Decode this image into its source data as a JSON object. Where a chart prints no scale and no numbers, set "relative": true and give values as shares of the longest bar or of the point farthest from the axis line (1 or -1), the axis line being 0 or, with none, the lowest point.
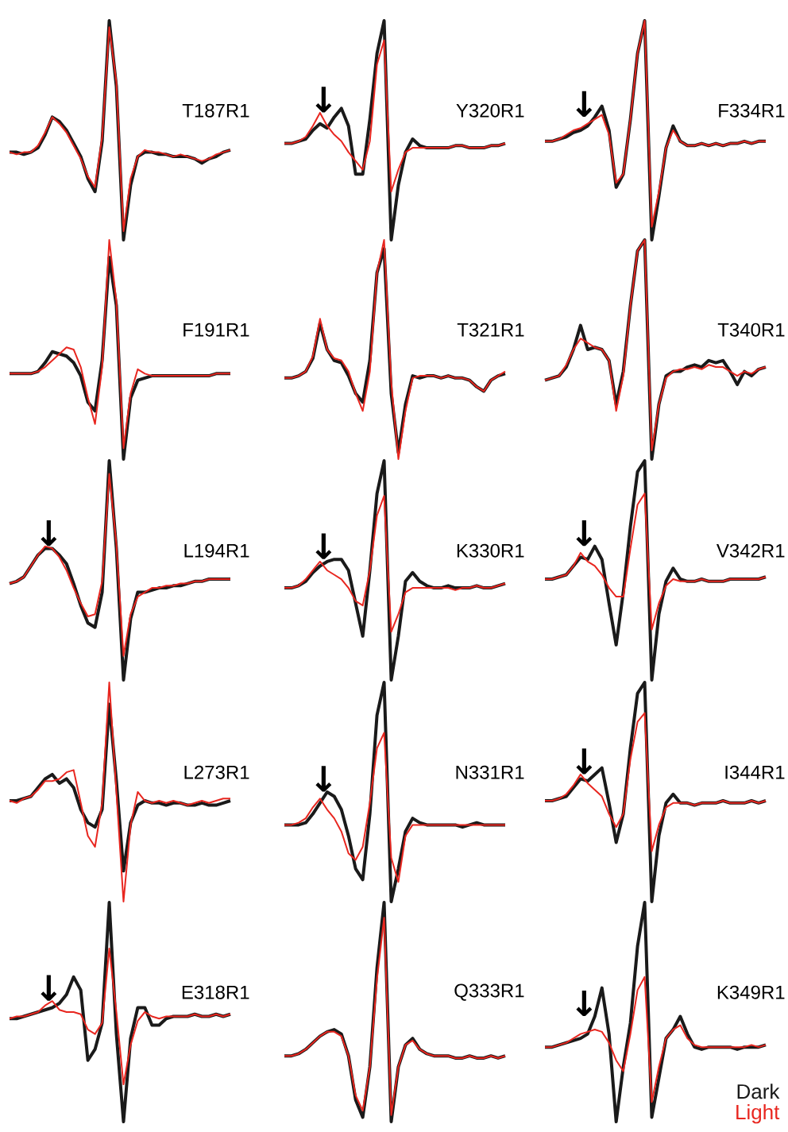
{
  "chart_data": [
    {
      "type": "line",
      "title": "T187R1",
      "relative": true,
      "line_style": "solid",
      "marker": "none",
      "categories": [
        null,
        null,
        null,
        null,
        null,
        null,
        null,
        null,
        null,
        null,
        null,
        null,
        null,
        null,
        null,
        null,
        null,
        null,
        null,
        null,
        null,
        null,
        null,
        null,
        null,
        null,
        null,
        null,
        null,
        null,
        null,
        null
      ],
      "series": [
        {
          "color": "#1a1a1a",
          "values": [
            0.4,
            0.4,
            0.39,
            0.4,
            0.42,
            0.48,
            0.56,
            0.54,
            0.5,
            0.44,
            0.38,
            0.28,
            0.22,
            0.45,
            1.0,
            0.7,
            0.0,
            0.25,
            0.38,
            0.4,
            0.4,
            0.39,
            0.39,
            0.38,
            0.38,
            0.38,
            0.37,
            0.35,
            0.37,
            0.38,
            0.4,
            0.41
          ]
        },
        {
          "color": "#e8261f",
          "values": [
            0.4,
            0.39,
            0.4,
            0.4,
            0.43,
            0.49,
            0.56,
            0.53,
            0.49,
            0.43,
            0.37,
            0.29,
            0.24,
            0.47,
            0.97,
            0.72,
            0.04,
            0.28,
            0.38,
            0.41,
            0.4,
            0.4,
            0.39,
            0.38,
            0.39,
            0.38,
            0.37,
            0.36,
            0.37,
            0.39,
            0.4,
            0.41
          ]
        }
      ]
    },
    {
      "type": "line",
      "title": "F191R1",
      "relative": true,
      "line_style": "solid",
      "marker": "none",
      "categories": [
        null,
        null,
        null,
        null,
        null,
        null,
        null,
        null,
        null,
        null,
        null,
        null,
        null,
        null,
        null,
        null,
        null,
        null,
        null,
        null,
        null,
        null,
        null,
        null,
        null,
        null,
        null,
        null,
        null,
        null,
        null,
        null
      ],
      "series": [
        {
          "color": "#1a1a1a",
          "values": [
            0.39,
            0.39,
            0.39,
            0.39,
            0.4,
            0.44,
            0.49,
            0.48,
            0.47,
            0.44,
            0.38,
            0.26,
            0.22,
            0.45,
            0.92,
            0.7,
            0.0,
            0.28,
            0.36,
            0.37,
            0.38,
            0.38,
            0.38,
            0.38,
            0.38,
            0.38,
            0.38,
            0.38,
            0.38,
            0.39,
            0.39,
            0.39
          ]
        },
        {
          "color": "#e8261f",
          "values": [
            0.39,
            0.39,
            0.39,
            0.39,
            0.4,
            0.42,
            0.45,
            0.48,
            0.51,
            0.5,
            0.42,
            0.28,
            0.16,
            0.42,
            1.0,
            0.72,
            0.05,
            0.3,
            0.41,
            0.39,
            0.38,
            0.38,
            0.38,
            0.38,
            0.38,
            0.38,
            0.38,
            0.38,
            0.38,
            0.39,
            0.39,
            0.39
          ]
        }
      ]
    },
    {
      "type": "line",
      "title": "L194R1",
      "relative": true,
      "line_style": "solid",
      "marker": "none",
      "annotations": [
        "↓"
      ],
      "categories": [
        null,
        null,
        null,
        null,
        null,
        null,
        null,
        null,
        null,
        null,
        null,
        null,
        null,
        null,
        null,
        null,
        null,
        null,
        null,
        null,
        null,
        null,
        null,
        null,
        null,
        null,
        null,
        null,
        null,
        null,
        null,
        null
      ],
      "series": [
        {
          "color": "#1a1a1a",
          "values": [
            0.44,
            0.45,
            0.47,
            0.52,
            0.57,
            0.6,
            0.6,
            0.57,
            0.53,
            0.44,
            0.34,
            0.26,
            0.24,
            0.4,
            1.0,
            0.6,
            0.0,
            0.28,
            0.4,
            0.4,
            0.41,
            0.42,
            0.42,
            0.43,
            0.43,
            0.44,
            0.45,
            0.45,
            0.46,
            0.46,
            0.46,
            0.46
          ]
        },
        {
          "color": "#e8261f",
          "values": [
            0.44,
            0.45,
            0.47,
            0.52,
            0.57,
            0.61,
            0.6,
            0.56,
            0.5,
            0.42,
            0.35,
            0.29,
            0.3,
            0.45,
            0.94,
            0.62,
            0.11,
            0.3,
            0.38,
            0.4,
            0.42,
            0.42,
            0.43,
            0.43,
            0.44,
            0.44,
            0.45,
            0.45,
            0.46,
            0.46,
            0.46,
            0.46
          ]
        }
      ]
    },
    {
      "type": "line",
      "title": "L273R1",
      "relative": true,
      "line_style": "solid",
      "marker": "none",
      "categories": [
        null,
        null,
        null,
        null,
        null,
        null,
        null,
        null,
        null,
        null,
        null,
        null,
        null,
        null,
        null,
        null,
        null,
        null,
        null,
        null,
        null,
        null,
        null,
        null,
        null,
        null,
        null,
        null,
        null,
        null,
        null,
        null
      ],
      "series": [
        {
          "color": "#1a1a1a",
          "values": [
            0.46,
            0.46,
            0.47,
            0.48,
            0.52,
            0.56,
            0.58,
            0.54,
            0.56,
            0.52,
            0.42,
            0.36,
            0.34,
            0.42,
            0.9,
            0.55,
            0.14,
            0.36,
            0.44,
            0.46,
            0.45,
            0.45,
            0.44,
            0.45,
            0.45,
            0.44,
            0.44,
            0.45,
            0.44,
            0.44,
            0.45,
            0.46
          ]
        },
        {
          "color": "#e8261f",
          "values": [
            0.46,
            0.45,
            0.47,
            0.48,
            0.51,
            0.55,
            0.55,
            0.56,
            0.59,
            0.6,
            0.45,
            0.3,
            0.25,
            0.45,
            1.0,
            0.5,
            0.0,
            0.35,
            0.5,
            0.46,
            0.45,
            0.46,
            0.45,
            0.46,
            0.45,
            0.44,
            0.45,
            0.46,
            0.45,
            0.46,
            0.47,
            0.47
          ]
        }
      ]
    },
    {
      "type": "line",
      "title": "E318R1",
      "relative": true,
      "line_style": "solid",
      "marker": "none",
      "annotations": [
        "↓"
      ],
      "categories": [
        null,
        null,
        null,
        null,
        null,
        null,
        null,
        null,
        null,
        null,
        null,
        null,
        null,
        null,
        null,
        null,
        null,
        null,
        null,
        null,
        null,
        null,
        null,
        null,
        null,
        null,
        null,
        null,
        null,
        null,
        null,
        null
      ],
      "series": [
        {
          "color": "#1a1a1a",
          "values": [
            0.47,
            0.47,
            0.48,
            0.49,
            0.5,
            0.51,
            0.52,
            0.54,
            0.58,
            0.66,
            0.6,
            0.28,
            0.33,
            0.45,
            1.0,
            0.4,
            0.0,
            0.38,
            0.52,
            0.52,
            0.44,
            0.44,
            0.47,
            0.48,
            0.48,
            0.48,
            0.49,
            0.48,
            0.48,
            0.49,
            0.48,
            0.49
          ]
        },
        {
          "color": "#e8261f",
          "values": [
            0.47,
            0.48,
            0.48,
            0.49,
            0.5,
            0.53,
            0.55,
            0.51,
            0.5,
            0.5,
            0.49,
            0.42,
            0.4,
            0.45,
            0.79,
            0.5,
            0.17,
            0.35,
            0.46,
            0.5,
            0.48,
            0.47,
            0.48,
            0.48,
            0.48,
            0.48,
            0.49,
            0.48,
            0.48,
            0.49,
            0.48,
            0.49
          ]
        }
      ]
    },
    {
      "type": "line",
      "title": "Y320R1",
      "relative": true,
      "line_style": "solid",
      "marker": "none",
      "annotations": [
        "↓"
      ],
      "categories": [
        null,
        null,
        null,
        null,
        null,
        null,
        null,
        null,
        null,
        null,
        null,
        null,
        null,
        null,
        null,
        null,
        null,
        null,
        null,
        null,
        null,
        null,
        null,
        null,
        null,
        null,
        null,
        null,
        null,
        null,
        null,
        null
      ],
      "series": [
        {
          "color": "#1a1a1a",
          "values": [
            0.44,
            0.44,
            0.45,
            0.46,
            0.5,
            0.53,
            0.51,
            0.56,
            0.6,
            0.52,
            0.3,
            0.3,
            0.55,
            0.85,
            1.0,
            0.0,
            0.25,
            0.4,
            0.46,
            0.43,
            0.42,
            0.42,
            0.42,
            0.42,
            0.43,
            0.43,
            0.42,
            0.42,
            0.42,
            0.43,
            0.43,
            0.44
          ]
        },
        {
          "color": "#e8261f",
          "values": [
            0.44,
            0.44,
            0.45,
            0.47,
            0.52,
            0.58,
            0.52,
            0.48,
            0.45,
            0.4,
            0.36,
            0.32,
            0.45,
            0.8,
            0.91,
            0.22,
            0.32,
            0.4,
            0.42,
            0.42,
            0.42,
            0.42,
            0.42,
            0.42,
            0.43,
            0.43,
            0.42,
            0.42,
            0.42,
            0.43,
            0.43,
            0.44
          ]
        }
      ]
    },
    {
      "type": "line",
      "title": "T321R1",
      "relative": true,
      "line_style": "solid",
      "marker": "none",
      "categories": [
        null,
        null,
        null,
        null,
        null,
        null,
        null,
        null,
        null,
        null,
        null,
        null,
        null,
        null,
        null,
        null,
        null,
        null,
        null,
        null,
        null,
        null,
        null,
        null,
        null,
        null,
        null,
        null,
        null,
        null,
        null,
        null
      ],
      "series": [
        {
          "color": "#1a1a1a",
          "values": [
            0.37,
            0.37,
            0.38,
            0.4,
            0.46,
            0.62,
            0.5,
            0.45,
            0.44,
            0.38,
            0.3,
            0.26,
            0.45,
            0.85,
            0.96,
            0.3,
            0.03,
            0.25,
            0.38,
            0.37,
            0.38,
            0.38,
            0.37,
            0.38,
            0.37,
            0.37,
            0.36,
            0.33,
            0.31,
            0.36,
            0.38,
            0.39
          ]
        },
        {
          "color": "#e8261f",
          "values": [
            0.37,
            0.37,
            0.38,
            0.4,
            0.47,
            0.64,
            0.5,
            0.46,
            0.45,
            0.4,
            0.3,
            0.22,
            0.4,
            0.85,
            1.0,
            0.35,
            0.0,
            0.22,
            0.37,
            0.38,
            0.38,
            0.38,
            0.37,
            0.38,
            0.37,
            0.37,
            0.36,
            0.33,
            0.31,
            0.36,
            0.38,
            0.4
          ]
        }
      ]
    },
    {
      "type": "line",
      "title": "K330R1",
      "relative": true,
      "line_style": "solid",
      "marker": "none",
      "annotations": [
        "↓"
      ],
      "categories": [
        null,
        null,
        null,
        null,
        null,
        null,
        null,
        null,
        null,
        null,
        null,
        null,
        null,
        null,
        null,
        null,
        null,
        null,
        null,
        null,
        null,
        null,
        null,
        null,
        null,
        null,
        null,
        null,
        null,
        null,
        null,
        null
      ],
      "series": [
        {
          "color": "#1a1a1a",
          "values": [
            0.42,
            0.42,
            0.43,
            0.45,
            0.49,
            0.52,
            0.54,
            0.55,
            0.55,
            0.5,
            0.35,
            0.2,
            0.5,
            0.85,
            1.0,
            0.0,
            0.2,
            0.45,
            0.49,
            0.45,
            0.43,
            0.42,
            0.42,
            0.43,
            0.42,
            0.42,
            0.42,
            0.43,
            0.42,
            0.42,
            0.43,
            0.44
          ]
        },
        {
          "color": "#e8261f",
          "values": [
            0.42,
            0.42,
            0.43,
            0.46,
            0.5,
            0.54,
            0.5,
            0.48,
            0.46,
            0.42,
            0.36,
            0.34,
            0.5,
            0.75,
            0.84,
            0.22,
            0.3,
            0.4,
            0.42,
            0.42,
            0.42,
            0.42,
            0.42,
            0.42,
            0.41,
            0.42,
            0.42,
            0.43,
            0.42,
            0.42,
            0.43,
            0.44
          ]
        }
      ]
    },
    {
      "type": "line",
      "title": "N331R1",
      "relative": true,
      "line_style": "solid",
      "marker": "none",
      "annotations": [
        "↓"
      ],
      "categories": [
        null,
        null,
        null,
        null,
        null,
        null,
        null,
        null,
        null,
        null,
        null,
        null,
        null,
        null,
        null,
        null,
        null,
        null,
        null,
        null,
        null,
        null,
        null,
        null,
        null,
        null,
        null,
        null,
        null,
        null,
        null,
        null
      ],
      "series": [
        {
          "color": "#1a1a1a",
          "values": [
            0.35,
            0.35,
            0.35,
            0.36,
            0.4,
            0.45,
            0.5,
            0.48,
            0.42,
            0.3,
            0.15,
            0.1,
            0.4,
            0.85,
            1.0,
            0.0,
            0.15,
            0.32,
            0.38,
            0.36,
            0.35,
            0.35,
            0.35,
            0.35,
            0.35,
            0.34,
            0.35,
            0.36,
            0.35,
            0.35,
            0.35,
            0.35
          ]
        },
        {
          "color": "#e8261f",
          "values": [
            0.35,
            0.35,
            0.36,
            0.38,
            0.43,
            0.47,
            0.42,
            0.38,
            0.32,
            0.22,
            0.19,
            0.25,
            0.45,
            0.7,
            0.77,
            0.2,
            0.09,
            0.3,
            0.35,
            0.35,
            0.35,
            0.35,
            0.35,
            0.35,
            0.35,
            0.35,
            0.35,
            0.35,
            0.35,
            0.35,
            0.35,
            0.35
          ]
        }
      ]
    },
    {
      "type": "line",
      "title": "Q333R1",
      "relative": true,
      "line_style": "solid",
      "marker": "none",
      "categories": [
        null,
        null,
        null,
        null,
        null,
        null,
        null,
        null,
        null,
        null,
        null,
        null,
        null,
        null,
        null,
        null,
        null,
        null,
        null,
        null,
        null,
        null,
        null,
        null,
        null,
        null,
        null,
        null,
        null,
        null,
        null,
        null
      ],
      "series": [
        {
          "color": "#1a1a1a",
          "values": [
            0.3,
            0.3,
            0.31,
            0.33,
            0.36,
            0.39,
            0.41,
            0.42,
            0.4,
            0.3,
            0.1,
            0.02,
            0.25,
            0.7,
            1.0,
            0.0,
            0.25,
            0.35,
            0.38,
            0.33,
            0.31,
            0.3,
            0.3,
            0.3,
            0.29,
            0.29,
            0.3,
            0.29,
            0.29,
            0.3,
            0.29,
            0.3
          ]
        },
        {
          "color": "#e8261f",
          "values": [
            0.3,
            0.3,
            0.31,
            0.33,
            0.36,
            0.39,
            0.41,
            0.41,
            0.39,
            0.3,
            0.12,
            0.05,
            0.25,
            0.65,
            0.93,
            0.03,
            0.25,
            0.35,
            0.37,
            0.33,
            0.31,
            0.3,
            0.3,
            0.3,
            0.29,
            0.29,
            0.3,
            0.29,
            0.29,
            0.3,
            0.29,
            0.3
          ]
        }
      ]
    },
    {
      "type": "line",
      "title": "F334R1",
      "relative": true,
      "line_style": "solid",
      "marker": "none",
      "annotations": [
        "↓"
      ],
      "categories": [
        null,
        null,
        null,
        null,
        null,
        null,
        null,
        null,
        null,
        null,
        null,
        null,
        null,
        null,
        null,
        null,
        null,
        null,
        null,
        null,
        null,
        null,
        null,
        null,
        null,
        null,
        null,
        null,
        null,
        null,
        null,
        null
      ],
      "series": [
        {
          "color": "#1a1a1a",
          "values": [
            0.45,
            0.45,
            0.46,
            0.47,
            0.49,
            0.5,
            0.52,
            0.56,
            0.61,
            0.5,
            0.24,
            0.3,
            0.55,
            0.85,
            1.0,
            0.0,
            0.2,
            0.42,
            0.52,
            0.45,
            0.43,
            0.43,
            0.44,
            0.43,
            0.44,
            0.43,
            0.44,
            0.44,
            0.45,
            0.44,
            0.45,
            0.45
          ]
        },
        {
          "color": "#e8261f",
          "values": [
            0.45,
            0.45,
            0.46,
            0.48,
            0.5,
            0.51,
            0.53,
            0.55,
            0.57,
            0.48,
            0.26,
            0.3,
            0.55,
            0.85,
            1.0,
            0.06,
            0.22,
            0.42,
            0.5,
            0.45,
            0.43,
            0.43,
            0.44,
            0.43,
            0.44,
            0.43,
            0.44,
            0.44,
            0.45,
            0.44,
            0.45,
            0.45
          ]
        }
      ]
    },
    {
      "type": "line",
      "title": "T340R1",
      "relative": true,
      "line_style": "solid",
      "marker": "none",
      "categories": [
        null,
        null,
        null,
        null,
        null,
        null,
        null,
        null,
        null,
        null,
        null,
        null,
        null,
        null,
        null,
        null,
        null,
        null,
        null,
        null,
        null,
        null,
        null,
        null,
        null,
        null,
        null,
        null,
        null,
        null,
        null,
        null
      ],
      "series": [
        {
          "color": "#1a1a1a",
          "values": [
            0.36,
            0.37,
            0.38,
            0.42,
            0.5,
            0.61,
            0.5,
            0.51,
            0.5,
            0.45,
            0.25,
            0.4,
            0.7,
            0.95,
            1.0,
            0.0,
            0.25,
            0.38,
            0.4,
            0.4,
            0.42,
            0.43,
            0.42,
            0.45,
            0.44,
            0.45,
            0.4,
            0.34,
            0.4,
            0.38,
            0.41,
            0.42
          ]
        },
        {
          "color": "#e8261f",
          "values": [
            0.36,
            0.37,
            0.38,
            0.43,
            0.5,
            0.55,
            0.53,
            0.51,
            0.5,
            0.45,
            0.22,
            0.38,
            0.7,
            0.95,
            1.0,
            0.04,
            0.25,
            0.37,
            0.4,
            0.41,
            0.41,
            0.42,
            0.41,
            0.43,
            0.42,
            0.42,
            0.4,
            0.38,
            0.4,
            0.39,
            0.41,
            0.42
          ]
        }
      ]
    },
    {
      "type": "line",
      "title": "V342R1",
      "relative": true,
      "line_style": "solid",
      "marker": "none",
      "annotations": [
        "↓"
      ],
      "categories": [
        null,
        null,
        null,
        null,
        null,
        null,
        null,
        null,
        null,
        null,
        null,
        null,
        null,
        null,
        null,
        null,
        null,
        null,
        null,
        null,
        null,
        null,
        null,
        null,
        null,
        null,
        null,
        null,
        null,
        null,
        null,
        null
      ],
      "series": [
        {
          "color": "#1a1a1a",
          "values": [
            0.46,
            0.46,
            0.47,
            0.48,
            0.52,
            0.56,
            0.55,
            0.61,
            0.55,
            0.35,
            0.16,
            0.4,
            0.7,
            0.95,
            1.0,
            0.0,
            0.3,
            0.45,
            0.51,
            0.46,
            0.45,
            0.45,
            0.46,
            0.45,
            0.45,
            0.45,
            0.46,
            0.46,
            0.46,
            0.46,
            0.46,
            0.47
          ]
        },
        {
          "color": "#e8261f",
          "values": [
            0.46,
            0.46,
            0.47,
            0.48,
            0.52,
            0.58,
            0.54,
            0.52,
            0.48,
            0.42,
            0.38,
            0.38,
            0.6,
            0.8,
            0.85,
            0.23,
            0.35,
            0.43,
            0.46,
            0.45,
            0.45,
            0.45,
            0.46,
            0.45,
            0.45,
            0.45,
            0.46,
            0.46,
            0.46,
            0.46,
            0.46,
            0.47
          ]
        }
      ]
    },
    {
      "type": "line",
      "title": "I344R1",
      "relative": true,
      "line_style": "solid",
      "marker": "none",
      "annotations": [
        "↓"
      ],
      "categories": [
        null,
        null,
        null,
        null,
        null,
        null,
        null,
        null,
        null,
        null,
        null,
        null,
        null,
        null,
        null,
        null,
        null,
        null,
        null,
        null,
        null,
        null,
        null,
        null,
        null,
        null,
        null,
        null,
        null,
        null,
        null,
        null
      ],
      "series": [
        {
          "color": "#1a1a1a",
          "values": [
            0.46,
            0.46,
            0.47,
            0.48,
            0.52,
            0.56,
            0.55,
            0.58,
            0.61,
            0.45,
            0.27,
            0.4,
            0.7,
            0.95,
            1.0,
            0.0,
            0.3,
            0.45,
            0.49,
            0.45,
            0.45,
            0.44,
            0.45,
            0.45,
            0.45,
            0.46,
            0.45,
            0.45,
            0.45,
            0.46,
            0.45,
            0.46
          ]
        },
        {
          "color": "#e8261f",
          "values": [
            0.46,
            0.46,
            0.47,
            0.49,
            0.53,
            0.58,
            0.54,
            0.51,
            0.48,
            0.4,
            0.34,
            0.4,
            0.65,
            0.82,
            0.86,
            0.23,
            0.35,
            0.43,
            0.45,
            0.45,
            0.45,
            0.44,
            0.45,
            0.45,
            0.45,
            0.46,
            0.45,
            0.45,
            0.45,
            0.46,
            0.45,
            0.46
          ]
        }
      ]
    },
    {
      "type": "line",
      "title": "K349R1",
      "relative": true,
      "line_style": "solid",
      "marker": "none",
      "annotations": [
        "↓"
      ],
      "legend": "bottom right",
      "categories": [
        null,
        null,
        null,
        null,
        null,
        null,
        null,
        null,
        null,
        null,
        null,
        null,
        null,
        null,
        null,
        null,
        null,
        null,
        null,
        null,
        null,
        null,
        null,
        null,
        null,
        null,
        null,
        null,
        null,
        null,
        null,
        null
      ],
      "series": [
        {
          "name": "Dark",
          "color": "#1a1a1a",
          "values": [
            0.34,
            0.34,
            0.35,
            0.36,
            0.37,
            0.38,
            0.4,
            0.48,
            0.61,
            0.4,
            0.0,
            0.25,
            0.45,
            0.8,
            1.0,
            0.02,
            0.2,
            0.38,
            0.42,
            0.48,
            0.4,
            0.34,
            0.33,
            0.34,
            0.34,
            0.34,
            0.34,
            0.33,
            0.34,
            0.34,
            0.34,
            0.35
          ]
        },
        {
          "name": "Light",
          "color": "#e8261f",
          "values": [
            0.34,
            0.34,
            0.35,
            0.36,
            0.38,
            0.4,
            0.41,
            0.42,
            0.41,
            0.36,
            0.28,
            0.23,
            0.4,
            0.6,
            0.66,
            0.09,
            0.25,
            0.38,
            0.42,
            0.44,
            0.38,
            0.35,
            0.34,
            0.34,
            0.34,
            0.34,
            0.34,
            0.34,
            0.34,
            0.35,
            0.34,
            0.35
          ]
        }
      ]
    }
  ]
}
